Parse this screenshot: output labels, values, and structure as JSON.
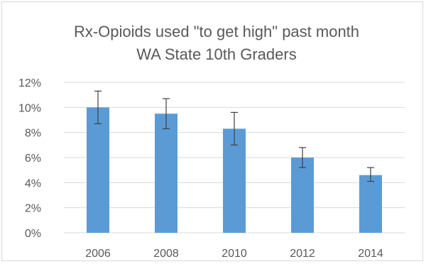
{
  "chart_data": {
    "type": "bar",
    "title": "Rx-Opioids used \"to get high\" past month",
    "subtitle": "WA State 10th Graders",
    "xlabel": "",
    "ylabel": "",
    "categories": [
      "2006",
      "2008",
      "2010",
      "2012",
      "2014"
    ],
    "values": [
      10.0,
      9.5,
      8.3,
      6.0,
      4.6
    ],
    "error_low": [
      8.7,
      8.3,
      7.0,
      5.2,
      4.1
    ],
    "error_high": [
      11.3,
      10.7,
      9.6,
      6.8,
      5.2
    ],
    "ylim": [
      0,
      12
    ],
    "yticks": [
      0,
      2,
      4,
      6,
      8,
      10,
      12
    ],
    "ytick_labels": [
      "0%",
      "2%",
      "4%",
      "6%",
      "8%",
      "10%",
      "12%"
    ],
    "grid": true,
    "legend": "none",
    "colors": {
      "bar": "#5b9bd5",
      "grid": "#d9d9d9",
      "error_bar": "#404040",
      "text": "#595959"
    }
  }
}
